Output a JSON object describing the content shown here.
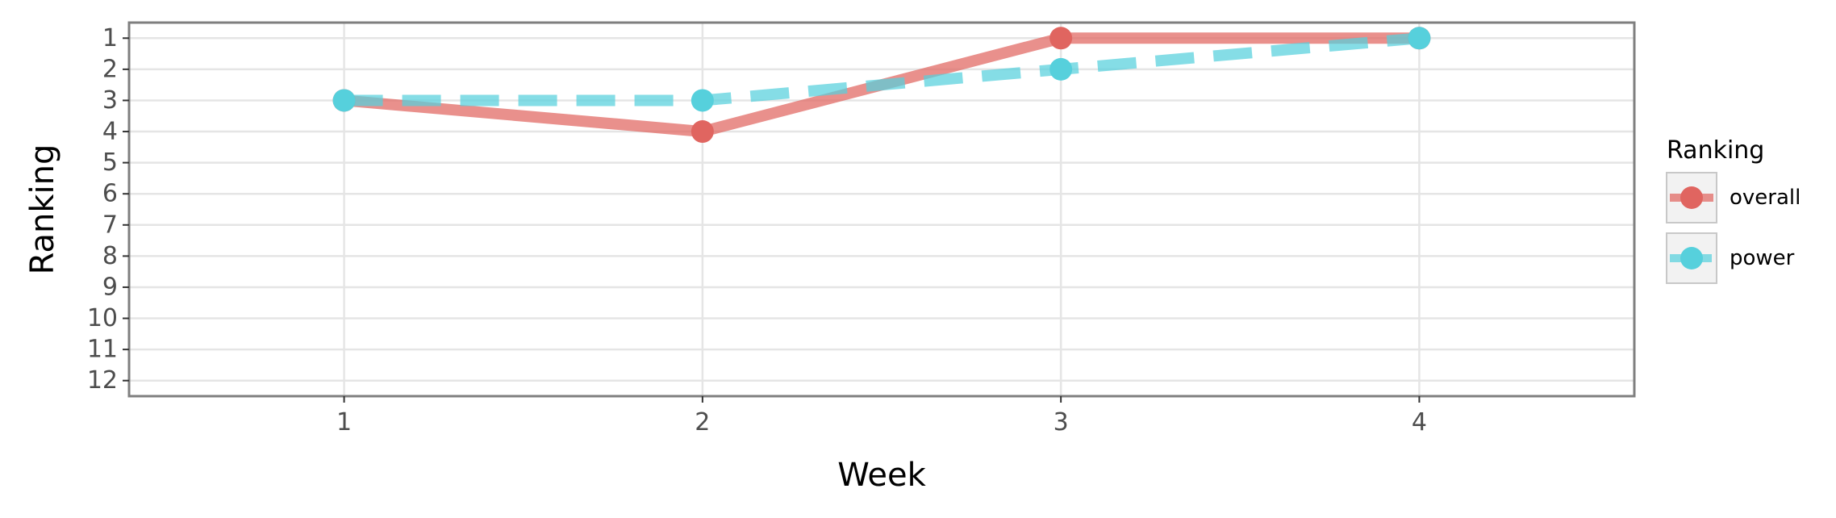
{
  "chart_data": {
    "type": "line",
    "xlabel": "Week",
    "ylabel": "Ranking",
    "x": [
      1,
      2,
      3,
      4
    ],
    "x_ticks": [
      "1",
      "2",
      "3",
      "4"
    ],
    "y_ticks": [
      "1",
      "2",
      "3",
      "4",
      "5",
      "6",
      "7",
      "8",
      "9",
      "10",
      "11",
      "12"
    ],
    "xlim": [
      0.4,
      4.6
    ],
    "ylim": [
      12.5,
      0.5
    ],
    "y_reversed": true,
    "grid": true,
    "legend": {
      "title": "Ranking",
      "position": "right"
    },
    "series": [
      {
        "name": "overall",
        "values": [
          3,
          4,
          1,
          1
        ],
        "color": "#e06560",
        "line_style": "solid"
      },
      {
        "name": "power",
        "values": [
          3,
          3,
          2,
          1
        ],
        "color": "#56d0dc",
        "line_style": "dashed"
      }
    ]
  }
}
